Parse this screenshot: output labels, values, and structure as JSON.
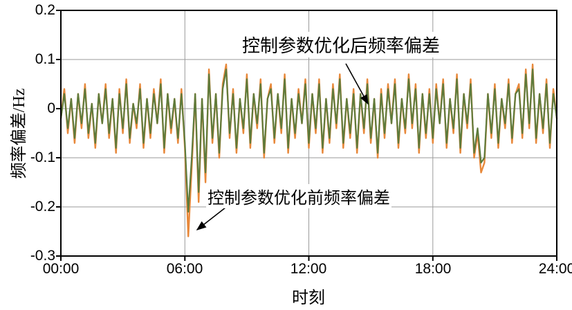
{
  "chart_data": {
    "type": "line",
    "title": "",
    "xlabel": "时刻",
    "ylabel": "频率偏差/Hz",
    "x_start_hour": 0,
    "x_end_hour": 24,
    "xlim": [
      0,
      24
    ],
    "ylim": [
      -0.3,
      0.2
    ],
    "grid": true,
    "legend_position": "none",
    "x_ticks": [
      "00:00",
      "06:00",
      "12:00",
      "18:00",
      "24:00"
    ],
    "x_tick_hours": [
      0,
      6,
      12,
      18,
      24
    ],
    "y_ticks": [
      "0.2",
      "0.1",
      "0",
      "-0.1",
      "-0.2",
      "-0.3"
    ],
    "y_tick_values": [
      0.2,
      0.1,
      0,
      -0.1,
      -0.2,
      -0.3
    ],
    "sampling_interval_minutes": 10,
    "series": [
      {
        "name": "控制参数优化前频率偏差",
        "color": "#E8883A",
        "values": [
          -0.02,
          0.04,
          -0.05,
          0.02,
          -0.07,
          0.03,
          -0.04,
          0.05,
          -0.06,
          0.01,
          -0.08,
          0.03,
          -0.03,
          0.05,
          -0.06,
          0.02,
          -0.09,
          0.04,
          -0.05,
          0.06,
          -0.07,
          0.01,
          -0.04,
          0.05,
          -0.08,
          0.02,
          -0.06,
          0.04,
          -0.03,
          0.06,
          -0.09,
          0.03,
          -0.05,
          0.02,
          -0.07,
          0.04,
          -0.08,
          -0.26,
          -0.12,
          0.03,
          -0.19,
          0.02,
          -0.15,
          0.08,
          -0.07,
          0.03,
          -0.1,
          0.05,
          0.09,
          -0.06,
          0.04,
          -0.09,
          0.02,
          -0.05,
          0.07,
          -0.08,
          0.03,
          -0.04,
          0.06,
          -0.1,
          0.02,
          0.05,
          -0.07,
          0.03,
          -0.05,
          0.07,
          -0.09,
          0.02,
          -0.06,
          0.04,
          -0.03,
          0.06,
          -0.08,
          0.03,
          -0.05,
          0.06,
          -0.09,
          0.02,
          -0.07,
          0.05,
          -0.04,
          0.07,
          -0.08,
          0.02,
          -0.06,
          0.04,
          -0.09,
          0.03,
          -0.05,
          0.06,
          -0.07,
          0.02,
          -0.1,
          0.04,
          -0.06,
          0.05,
          -0.03,
          0.06,
          -0.08,
          0.02,
          -0.05,
          0.07,
          -0.04,
          0.05,
          -0.09,
          0.03,
          -0.06,
          0.04,
          -0.07,
          0.05,
          -0.03,
          0.06,
          -0.08,
          0.02,
          -0.05,
          0.07,
          -0.09,
          0.03,
          -0.04,
          0.06,
          -0.1,
          -0.05,
          -0.13,
          -0.11,
          0.03,
          -0.06,
          0.05,
          -0.08,
          0.02,
          -0.04,
          0.06,
          -0.07,
          0.03,
          0.05,
          -0.06,
          0.08,
          -0.04,
          0.09,
          -0.07,
          0.03,
          -0.05,
          0.06,
          -0.08,
          0.04,
          -0.02
        ]
      },
      {
        "name": "控制参数优化后频率偏差",
        "color": "#5E7B3C",
        "values": [
          -0.02,
          0.03,
          -0.04,
          0.02,
          -0.06,
          0.03,
          -0.03,
          0.04,
          -0.05,
          0.01,
          -0.07,
          0.03,
          -0.03,
          0.04,
          -0.05,
          0.02,
          -0.08,
          0.03,
          -0.04,
          0.05,
          -0.06,
          0.01,
          -0.03,
          0.04,
          -0.07,
          0.02,
          -0.05,
          0.03,
          -0.03,
          0.05,
          -0.08,
          0.03,
          -0.04,
          0.02,
          -0.06,
          0.03,
          -0.07,
          -0.21,
          -0.1,
          0.03,
          -0.17,
          0.02,
          -0.13,
          0.07,
          -0.06,
          0.03,
          -0.09,
          0.04,
          0.08,
          -0.05,
          0.03,
          -0.08,
          0.02,
          -0.04,
          0.06,
          -0.07,
          0.03,
          -0.03,
          0.05,
          -0.09,
          0.02,
          0.04,
          -0.06,
          0.03,
          -0.04,
          0.06,
          -0.08,
          0.02,
          -0.05,
          0.03,
          -0.03,
          0.05,
          -0.07,
          0.03,
          -0.04,
          0.05,
          -0.08,
          0.02,
          -0.06,
          0.04,
          -0.03,
          0.06,
          -0.07,
          0.02,
          -0.05,
          0.03,
          -0.08,
          0.03,
          -0.04,
          0.05,
          -0.06,
          0.02,
          -0.09,
          0.03,
          -0.05,
          0.04,
          -0.03,
          0.05,
          -0.07,
          0.02,
          -0.04,
          0.06,
          -0.03,
          0.04,
          -0.08,
          0.03,
          -0.05,
          0.03,
          -0.06,
          0.04,
          -0.03,
          0.05,
          -0.07,
          0.02,
          -0.04,
          0.06,
          -0.08,
          0.03,
          -0.03,
          0.05,
          -0.09,
          -0.04,
          -0.11,
          -0.1,
          0.03,
          -0.05,
          0.04,
          -0.07,
          0.02,
          -0.03,
          0.05,
          -0.06,
          0.03,
          0.04,
          -0.05,
          0.07,
          -0.03,
          0.08,
          -0.06,
          0.03,
          -0.04,
          0.05,
          -0.07,
          0.03,
          -0.02
        ]
      }
    ],
    "annotations": [
      {
        "text": "控制参数优化后频率偏差",
        "points_to": "green line near 0 Hz around 12:40"
      },
      {
        "text": "控制参数优化前频率偏差",
        "points_to": "orange spike to -0.27 Hz around 06:15"
      }
    ]
  },
  "colors": {
    "grid": "#9a9a9a",
    "frame": "#000000",
    "before_line": "#E8883A",
    "after_line": "#5E7B3C"
  }
}
